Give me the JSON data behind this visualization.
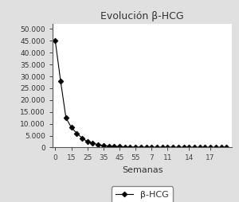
{
  "title": "Evolución β-HCG",
  "xlabel": "Semanas",
  "ylabel": "",
  "legend_label": "β-HCG",
  "x_values": [
    0,
    1,
    2,
    3,
    4,
    5,
    6,
    7,
    8,
    9,
    10,
    11,
    12,
    13,
    14,
    15,
    16,
    17,
    18,
    19,
    20,
    21,
    22,
    23,
    24,
    25,
    26,
    27,
    28,
    29,
    30,
    31,
    32
  ],
  "y_values": [
    45000,
    28000,
    12500,
    8500,
    6000,
    4000,
    2500,
    1800,
    1200,
    800,
    600,
    450,
    320,
    240,
    180,
    140,
    110,
    85,
    70,
    58,
    48,
    40,
    33,
    28,
    23,
    19,
    16,
    13,
    11,
    9,
    7,
    6,
    5
  ],
  "x_tick_positions": [
    0,
    3,
    6,
    9,
    12,
    15,
    18,
    21,
    25,
    29
  ],
  "x_tick_labels": [
    "0",
    "15",
    "25",
    "35",
    "45",
    "55",
    "7",
    "11",
    "14",
    "17"
  ],
  "ylim": [
    0,
    52000
  ],
  "xlim": [
    -0.5,
    33
  ],
  "yticks": [
    0,
    5000,
    10000,
    15000,
    20000,
    25000,
    30000,
    35000,
    40000,
    45000,
    50000
  ],
  "ytick_labels": [
    "0",
    "5.000",
    "10.000",
    "15.000",
    "20.000",
    "25.000",
    "30.000",
    "35.000",
    "40.000",
    "45.000",
    "50.000"
  ],
  "line_color": "#000000",
  "marker": "D",
  "marker_size": 3.5,
  "background_color": "#ffffff",
  "fig_background_color": "#e0e0e0",
  "title_fontsize": 9,
  "label_fontsize": 8,
  "tick_fontsize": 6.5
}
